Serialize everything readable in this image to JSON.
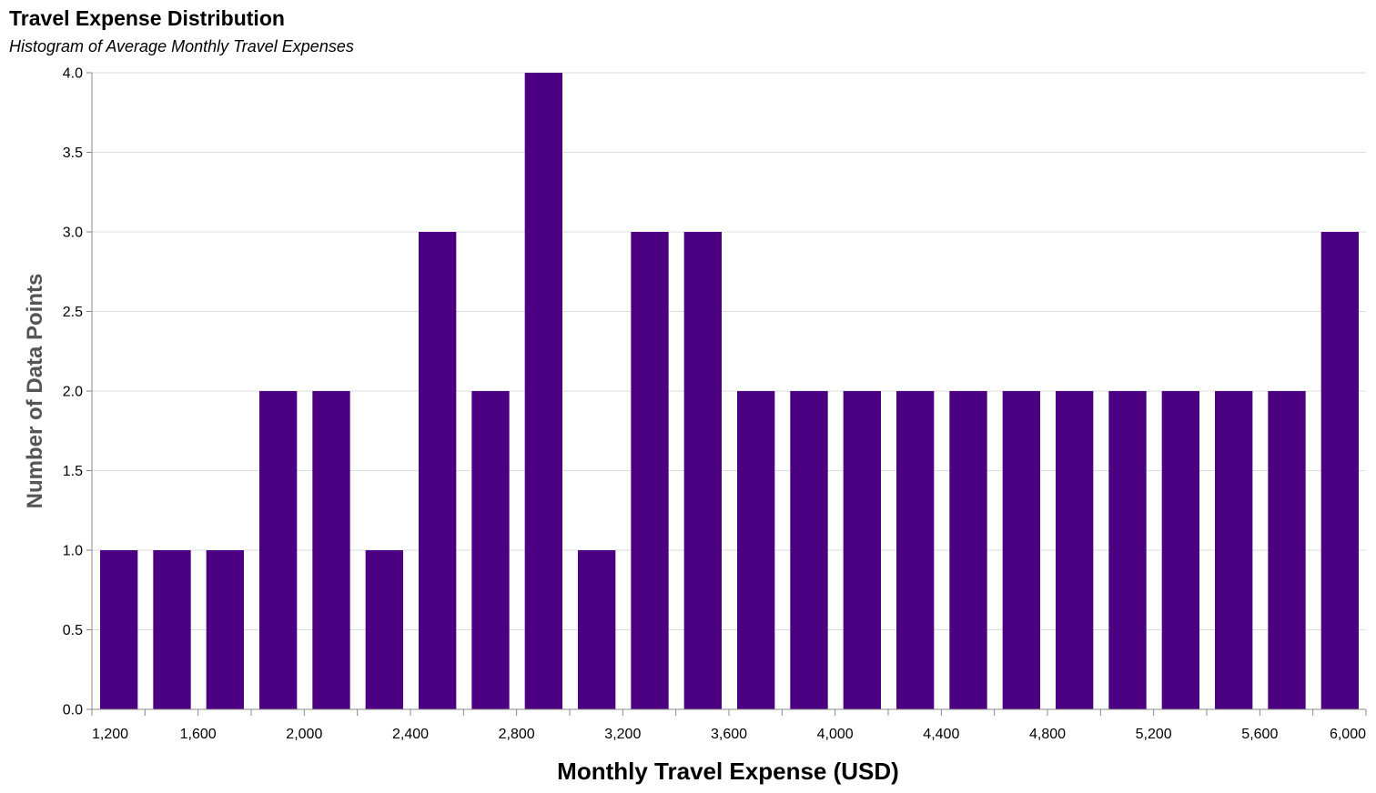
{
  "title": "Travel Expense Distribution",
  "subtitle": "Histogram of Average Monthly Travel Expenses",
  "colors": {
    "bar": "#4b0082",
    "grid": "#dddddd",
    "axis": "#888888",
    "ytitle": "#555555"
  },
  "chart_data": {
    "type": "bar",
    "title": "Travel Expense Distribution",
    "subtitle": "Histogram of Average Monthly Travel Expenses",
    "xlabel": "Monthly Travel Expense (USD)",
    "ylabel": "Number of Data Points",
    "xlim": [
      1200,
      6000
    ],
    "ylim": [
      0,
      4
    ],
    "grid": true,
    "bin_width": 200,
    "bins": [
      {
        "start": 1200,
        "end": 1400,
        "count": 1
      },
      {
        "start": 1400,
        "end": 1600,
        "count": 1
      },
      {
        "start": 1600,
        "end": 1800,
        "count": 1
      },
      {
        "start": 1800,
        "end": 2000,
        "count": 2
      },
      {
        "start": 2000,
        "end": 2200,
        "count": 2
      },
      {
        "start": 2200,
        "end": 2400,
        "count": 1
      },
      {
        "start": 2400,
        "end": 2600,
        "count": 3
      },
      {
        "start": 2600,
        "end": 2800,
        "count": 2
      },
      {
        "start": 2800,
        "end": 3000,
        "count": 4
      },
      {
        "start": 3000,
        "end": 3200,
        "count": 1
      },
      {
        "start": 3200,
        "end": 3400,
        "count": 3
      },
      {
        "start": 3400,
        "end": 3600,
        "count": 3
      },
      {
        "start": 3600,
        "end": 3800,
        "count": 2
      },
      {
        "start": 3800,
        "end": 4000,
        "count": 2
      },
      {
        "start": 4000,
        "end": 4200,
        "count": 2
      },
      {
        "start": 4200,
        "end": 4400,
        "count": 2
      },
      {
        "start": 4400,
        "end": 4600,
        "count": 2
      },
      {
        "start": 4600,
        "end": 4800,
        "count": 2
      },
      {
        "start": 4800,
        "end": 5000,
        "count": 2
      },
      {
        "start": 5000,
        "end": 5200,
        "count": 2
      },
      {
        "start": 5200,
        "end": 5400,
        "count": 2
      },
      {
        "start": 5400,
        "end": 5600,
        "count": 2
      },
      {
        "start": 5600,
        "end": 5800,
        "count": 2
      },
      {
        "start": 5800,
        "end": 6000,
        "count": 3
      }
    ],
    "x_ticks": [
      1200,
      1600,
      2000,
      2400,
      2800,
      3200,
      3600,
      4000,
      4400,
      4800,
      5200,
      5600,
      6000
    ],
    "x_tick_labels": [
      "1,200",
      "1,600",
      "2,000",
      "2,400",
      "2,800",
      "3,200",
      "3,600",
      "4,000",
      "4,400",
      "4,800",
      "5,200",
      "5,600",
      "6,000"
    ],
    "y_ticks": [
      0,
      0.5,
      1,
      1.5,
      2,
      2.5,
      3,
      3.5,
      4
    ],
    "y_tick_labels": [
      "0.0",
      "0.5",
      "1.0",
      "1.5",
      "2.0",
      "2.5",
      "3.0",
      "3.5",
      "4.0"
    ]
  }
}
